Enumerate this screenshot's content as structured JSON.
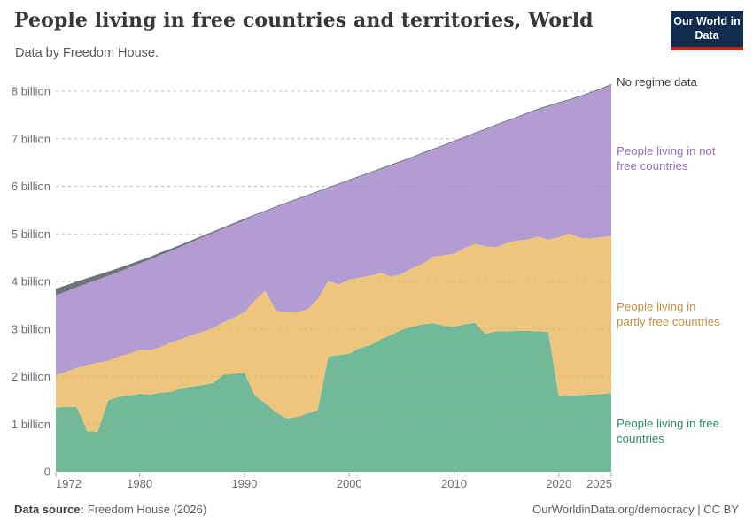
{
  "header": {
    "title": "People living in free countries and territories, World",
    "subtitle": "Data by Freedom House.",
    "logo": {
      "line1": "Our World",
      "line2": "in Data"
    }
  },
  "footer": {
    "source_label": "Data source:",
    "source_value": "Freedom House (2026)",
    "rights": "OurWorldinData.org/democracy | CC BY"
  },
  "colors": {
    "background": "#ffffff",
    "gridline": "#cfcfcf",
    "axis_text": "#6e6e6e",
    "logo_bg": "#102d50",
    "logo_accent": "#cc2116"
  },
  "chart_data": {
    "type": "area",
    "stacked": true,
    "title": "People living in free countries and territories, World",
    "xlabel": "",
    "ylabel": "",
    "ylim": [
      0,
      8.2
    ],
    "grid": true,
    "legend_position": "right",
    "years": [
      1972,
      1973,
      1974,
      1975,
      1976,
      1977,
      1978,
      1979,
      1980,
      1981,
      1982,
      1983,
      1984,
      1985,
      1986,
      1987,
      1988,
      1989,
      1990,
      1991,
      1992,
      1993,
      1994,
      1995,
      1996,
      1997,
      1998,
      1999,
      2000,
      2001,
      2002,
      2003,
      2004,
      2005,
      2006,
      2007,
      2008,
      2009,
      2010,
      2011,
      2012,
      2013,
      2014,
      2015,
      2016,
      2017,
      2018,
      2019,
      2020,
      2021,
      2022,
      2023,
      2024,
      2025
    ],
    "unit": "billion people",
    "yticks": [
      {
        "value": 0,
        "label": "0"
      },
      {
        "value": 1,
        "label": "1 billion"
      },
      {
        "value": 2,
        "label": "2 billion"
      },
      {
        "value": 3,
        "label": "3 billion"
      },
      {
        "value": 4,
        "label": "4 billion"
      },
      {
        "value": 5,
        "label": "5 billion"
      },
      {
        "value": 6,
        "label": "6 billion"
      },
      {
        "value": 7,
        "label": "7 billion"
      },
      {
        "value": 8,
        "label": "8 billion"
      }
    ],
    "xticks": [
      1972,
      1980,
      1990,
      2000,
      2010,
      2020,
      2025
    ],
    "series": [
      {
        "id": "free",
        "name": "People living in free countries",
        "color": "#72b99a",
        "label_color": "#2f8a6a",
        "values": [
          1.35,
          1.36,
          1.36,
          0.85,
          0.84,
          1.5,
          1.57,
          1.6,
          1.64,
          1.62,
          1.66,
          1.68,
          1.76,
          1.79,
          1.82,
          1.86,
          2.04,
          2.06,
          2.08,
          1.6,
          1.44,
          1.25,
          1.12,
          1.15,
          1.22,
          1.3,
          2.42,
          2.45,
          2.48,
          2.6,
          2.66,
          2.78,
          2.88,
          2.98,
          3.05,
          3.1,
          3.12,
          3.07,
          3.05,
          3.1,
          3.13,
          2.9,
          2.95,
          2.95,
          2.96,
          2.96,
          2.95,
          2.94,
          1.58,
          1.6,
          1.61,
          1.62,
          1.63,
          1.65
        ]
      },
      {
        "id": "partly_free",
        "name": "People living in partly free countries",
        "color": "#eec57d",
        "label_color": "#c1923f",
        "values": [
          0.68,
          0.74,
          0.82,
          1.39,
          1.45,
          0.83,
          0.85,
          0.88,
          0.92,
          0.93,
          0.96,
          1.04,
          1.03,
          1.08,
          1.12,
          1.16,
          1.1,
          1.18,
          1.27,
          2.0,
          2.37,
          2.13,
          2.24,
          2.21,
          2.19,
          2.33,
          1.59,
          1.49,
          1.56,
          1.48,
          1.46,
          1.4,
          1.22,
          1.18,
          1.23,
          1.27,
          1.4,
          1.48,
          1.53,
          1.6,
          1.66,
          1.84,
          1.77,
          1.85,
          1.9,
          1.92,
          1.99,
          1.94,
          3.35,
          3.41,
          3.31,
          3.28,
          3.3,
          3.31
        ]
      },
      {
        "id": "not_free",
        "name": "People living in not free countries",
        "color": "#b29cd2",
        "label_color": "#9471b8",
        "values": [
          1.68,
          1.69,
          1.7,
          1.72,
          1.75,
          1.79,
          1.78,
          1.81,
          1.82,
          1.91,
          1.94,
          1.92,
          1.95,
          1.96,
          1.99,
          2.0,
          1.97,
          1.96,
          1.94,
          1.79,
          1.66,
          2.18,
          2.28,
          2.36,
          2.39,
          2.25,
          1.95,
          2.1,
          2.08,
          2.12,
          2.16,
          2.18,
          2.34,
          2.36,
          2.32,
          2.32,
          2.25,
          2.3,
          2.36,
          2.32,
          2.32,
          2.45,
          2.56,
          2.56,
          2.58,
          2.65,
          2.67,
          2.8,
          2.82,
          2.8,
          2.96,
          3.06,
          3.11,
          3.17
        ]
      },
      {
        "id": "no_regime",
        "name": "No regime data",
        "color": "#6e737a",
        "label_color": "#3f3f3f",
        "values": [
          0.14,
          0.13,
          0.12,
          0.11,
          0.1,
          0.09,
          0.08,
          0.07,
          0.06,
          0.06,
          0.05,
          0.05,
          0.04,
          0.04,
          0.03,
          0.03,
          0.03,
          0.03,
          0.03,
          0.02,
          0.02,
          0.02,
          0.02,
          0.02,
          0.02,
          0.02,
          0.02,
          0.02,
          0.02,
          0.02,
          0.02,
          0.02,
          0.02,
          0.02,
          0.02,
          0.02,
          0.02,
          0.02,
          0.02,
          0.02,
          0.02,
          0.02,
          0.02,
          0.02,
          0.02,
          0.02,
          0.02,
          0.02,
          0.02,
          0.02,
          0.02,
          0.02,
          0.02,
          0.02
        ]
      }
    ],
    "labels": {
      "no_regime": [
        "No regime data"
      ],
      "not_free": [
        "People living in not",
        "free countries"
      ],
      "partly_free": [
        "People living in",
        "partly free countries"
      ],
      "free": [
        "People living in free",
        "countries"
      ]
    }
  }
}
